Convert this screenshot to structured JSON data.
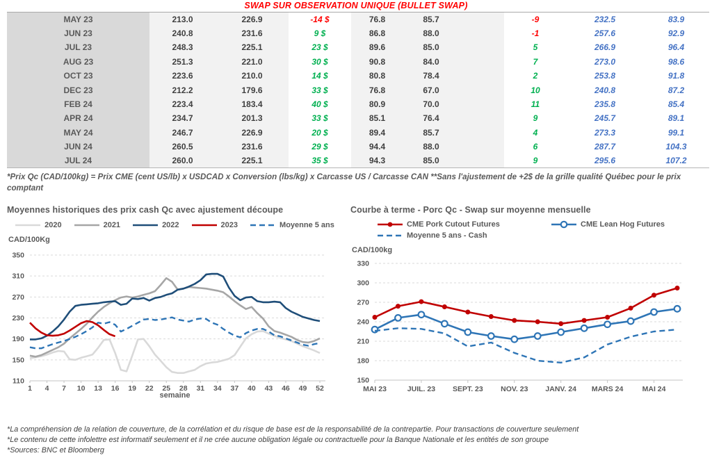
{
  "header": {
    "title": "SWAP SUR OBSERVATION UNIQUE (BULLET SWAP)"
  },
  "colors": {
    "title_red": "#ff0000",
    "negative": "#ff0000",
    "positive": "#00b050",
    "blue_column": "#4472c4",
    "navy": "#1f4e79",
    "red_series": "#c00000",
    "steel_blue": "#2e75b6",
    "gray_2021": "#a6a6a6",
    "gray_2020": "#d9d9d9"
  },
  "table": {
    "rows": [
      {
        "month": "MAY 23",
        "cells": [
          "213.0",
          "226.9",
          "-14 $",
          "76.8",
          "85.7",
          "-9",
          "232.5",
          "83.9"
        ]
      },
      {
        "month": "JUN 23",
        "cells": [
          "240.8",
          "231.6",
          "9 $",
          "86.8",
          "88.0",
          "-1",
          "257.6",
          "92.9"
        ]
      },
      {
        "month": "JUL 23",
        "cells": [
          "248.3",
          "225.1",
          "23 $",
          "89.6",
          "85.0",
          "5",
          "266.9",
          "96.4"
        ]
      },
      {
        "month": "AUG 23",
        "cells": [
          "251.3",
          "221.0",
          "30 $",
          "90.8",
          "84.0",
          "7",
          "273.0",
          "98.6"
        ]
      },
      {
        "month": "OCT 23",
        "cells": [
          "223.6",
          "210.0",
          "14 $",
          "80.8",
          "78.4",
          "2",
          "253.8",
          "91.8"
        ]
      },
      {
        "month": "DEC 23",
        "cells": [
          "212.2",
          "179.6",
          "33 $",
          "76.8",
          "67.0",
          "10",
          "240.8",
          "87.2"
        ]
      },
      {
        "month": "FEB 24",
        "cells": [
          "223.4",
          "183.4",
          "40 $",
          "80.9",
          "70.0",
          "11",
          "235.8",
          "85.4"
        ]
      },
      {
        "month": "APR 24",
        "cells": [
          "234.7",
          "201.3",
          "33 $",
          "85.1",
          "76.4",
          "9",
          "245.7",
          "89.1"
        ]
      },
      {
        "month": "MAY 24",
        "cells": [
          "246.7",
          "226.9",
          "20 $",
          "89.4",
          "85.7",
          "4",
          "273.3",
          "99.1"
        ]
      },
      {
        "month": "JUN 24",
        "cells": [
          "260.5",
          "231.6",
          "29 $",
          "94.4",
          "88.0",
          "6",
          "287.7",
          "104.3"
        ]
      },
      {
        "month": "JUL 24",
        "cells": [
          "260.0",
          "225.1",
          "35 $",
          "94.3",
          "85.0",
          "9",
          "295.6",
          "107.2"
        ]
      }
    ]
  },
  "table_footnote": "*Prix Qc (CAD/100kg) = Prix CME (cent US/lb) x USDCAD x Conversion (lbs/kg) x Carcasse US / Carcasse CAN **Sans l'ajustement de +2$ de la grille qualité Québec pour le prix comptant",
  "chart_data": [
    {
      "id": "historical",
      "type": "line",
      "title": "Moyennes historiques des prix cash Qc avec ajustement découpe",
      "unit_label": "CAD/100Kg",
      "xlabel": "semaine",
      "xlim": [
        1,
        52
      ],
      "x_ticks": [
        1,
        4,
        7,
        10,
        13,
        16,
        19,
        22,
        25,
        28,
        31,
        34,
        37,
        40,
        43,
        46,
        49,
        52
      ],
      "ylim": [
        110,
        350
      ],
      "y_ticks": [
        110,
        150,
        190,
        230,
        270,
        310,
        350
      ],
      "grid": true,
      "legend_position": "top",
      "series": [
        {
          "name": "2020",
          "color": "#d9d9d9",
          "style": "solid",
          "values": [
            153,
            155,
            157,
            160,
            164,
            167,
            166,
            151,
            150,
            154,
            157,
            160,
            173,
            188,
            189,
            163,
            131,
            128,
            158,
            189,
            190,
            176,
            160,
            148,
            136,
            127,
            125,
            125,
            128,
            131,
            138,
            143,
            145,
            146,
            149,
            152,
            159,
            175,
            191,
            199,
            204,
            205,
            200,
            196,
            192,
            189,
            186,
            181,
            176,
            172,
            168,
            163
          ]
        },
        {
          "name": "2021",
          "color": "#a6a6a6",
          "style": "solid",
          "values": [
            158,
            156,
            159,
            164,
            169,
            174,
            181,
            191,
            200,
            209,
            219,
            231,
            242,
            251,
            258,
            264,
            269,
            271,
            269,
            271,
            274,
            277,
            281,
            293,
            306,
            299,
            284,
            286,
            289,
            288,
            287,
            286,
            284,
            282,
            279,
            271,
            262,
            254,
            247,
            251,
            239,
            229,
            214,
            205,
            202,
            198,
            194,
            188,
            184,
            183,
            186,
            191
          ]
        },
        {
          "name": "2022",
          "color": "#1f4e79",
          "style": "solid",
          "values": [
            189,
            189,
            191,
            196,
            204,
            214,
            227,
            242,
            253,
            255,
            256,
            257,
            258,
            260,
            261,
            262,
            255,
            257,
            267,
            266,
            268,
            263,
            268,
            270,
            274,
            277,
            284,
            286,
            290,
            295,
            302,
            313,
            314,
            314,
            309,
            288,
            272,
            264,
            269,
            270,
            262,
            260,
            260,
            261,
            260,
            249,
            242,
            237,
            232,
            229,
            226,
            224
          ]
        },
        {
          "name": "Moyenne 5 ans",
          "color": "#2e75b6",
          "style": "dashed",
          "values": [
            174,
            172,
            172,
            176,
            180,
            183,
            186,
            190,
            194,
            199,
            205,
            212,
            221,
            219,
            222,
            217,
            204,
            209,
            215,
            221,
            227,
            228,
            226,
            227,
            229,
            231,
            227,
            225,
            223,
            227,
            229,
            228,
            221,
            217,
            209,
            202,
            196,
            193,
            201,
            206,
            209,
            209,
            204,
            197,
            195,
            191,
            187,
            183,
            179,
            177,
            180,
            182
          ]
        },
        {
          "name": "2023",
          "color": "#c00000",
          "style": "solid",
          "values": [
            221,
            210,
            202,
            197,
            196,
            197,
            200,
            206,
            213,
            220,
            224,
            222,
            216,
            207,
            199,
            195
          ]
        }
      ],
      "legend_order": [
        0,
        1,
        2,
        4,
        3
      ]
    },
    {
      "id": "forward",
      "type": "line",
      "title": "Courbe à terme - Porc Qc - Swap sur moyenne mensuelle",
      "unit_label": "CAD/100kg",
      "categories": [
        "MAI 23",
        "JUIN 23",
        "JUIL. 23",
        "AOÛT 23",
        "SEPT. 23",
        "OCT. 23",
        "NOV. 23",
        "DÉC. 23",
        "JANV. 24",
        "FÉVR. 24",
        "MARS 24",
        "AVR. 24",
        "MAI 24",
        "JUIN 24"
      ],
      "x_tick_labels": [
        "MAI 23",
        "",
        "JUIL. 23",
        "",
        "SEPT. 23",
        "",
        "NOV. 23",
        "",
        "JANV. 24",
        "",
        "MARS 24",
        "",
        "MAI 24",
        ""
      ],
      "ylim": [
        150,
        330
      ],
      "y_ticks": [
        150,
        180,
        210,
        240,
        270,
        300,
        330
      ],
      "grid": true,
      "legend_position": "top",
      "series": [
        {
          "name": "CME Pork Cutout Futures",
          "color": "#c00000",
          "style": "solid",
          "marker": "filled",
          "values": [
            247,
            264,
            271,
            263,
            255,
            248,
            242,
            240,
            237,
            242,
            247,
            261,
            281,
            292
          ]
        },
        {
          "name": "CME Lean Hog Futures",
          "color": "#2e75b6",
          "style": "solid",
          "marker": "open",
          "values": [
            228,
            246,
            251,
            237,
            224,
            218,
            213,
            218,
            224,
            230,
            236,
            241,
            255,
            260
          ]
        },
        {
          "name": "Moyenne 5 ans - Cash",
          "color": "#2e75b6",
          "style": "dashed",
          "values": [
            226,
            230,
            229,
            222,
            202,
            208,
            192,
            180,
            177,
            185,
            205,
            217,
            225,
            228
          ]
        }
      ]
    }
  ],
  "footer": {
    "lines": [
      "*La compréhension de la relation de couverture, de la corrélation et du risque de base est de la responsabilité de la contrepartie. Pour transactions de couverture seulement",
      "*Le contenu de cette infolettre est informatif seulement et il ne crée aucune obligation légale ou contractuelle pour la Banque Nationale et les entités de son groupe",
      "*Sources: BNC et Bloomberg"
    ]
  }
}
